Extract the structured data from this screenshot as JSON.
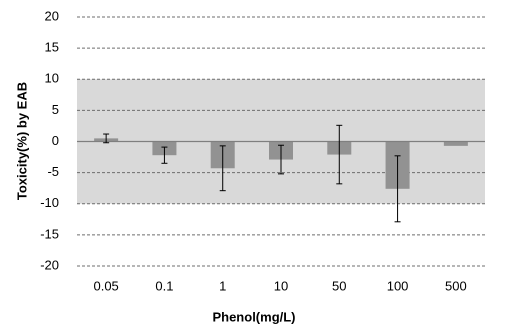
{
  "chart_data": {
    "type": "bar",
    "x_label": "Phenol(mg/L)",
    "y_label": "Toxicity(%) by EAB",
    "categories": [
      "0.05",
      "0.1",
      "1",
      "10",
      "50",
      "100",
      "500"
    ],
    "values": [
      0.5,
      -2.2,
      -4.3,
      -2.9,
      -2.1,
      -7.6,
      -0.7
    ],
    "errors": [
      0.7,
      1.3,
      3.6,
      2.3,
      4.7,
      5.3,
      0
    ],
    "color": "#929292",
    "shaded_range": [
      -10,
      10
    ],
    "shade_color": "#d9d9d9",
    "ylim": [
      -20,
      20
    ],
    "yticks": [
      -20,
      -15,
      -10,
      -5,
      0,
      5,
      10,
      15,
      20
    ],
    "grid": true
  }
}
